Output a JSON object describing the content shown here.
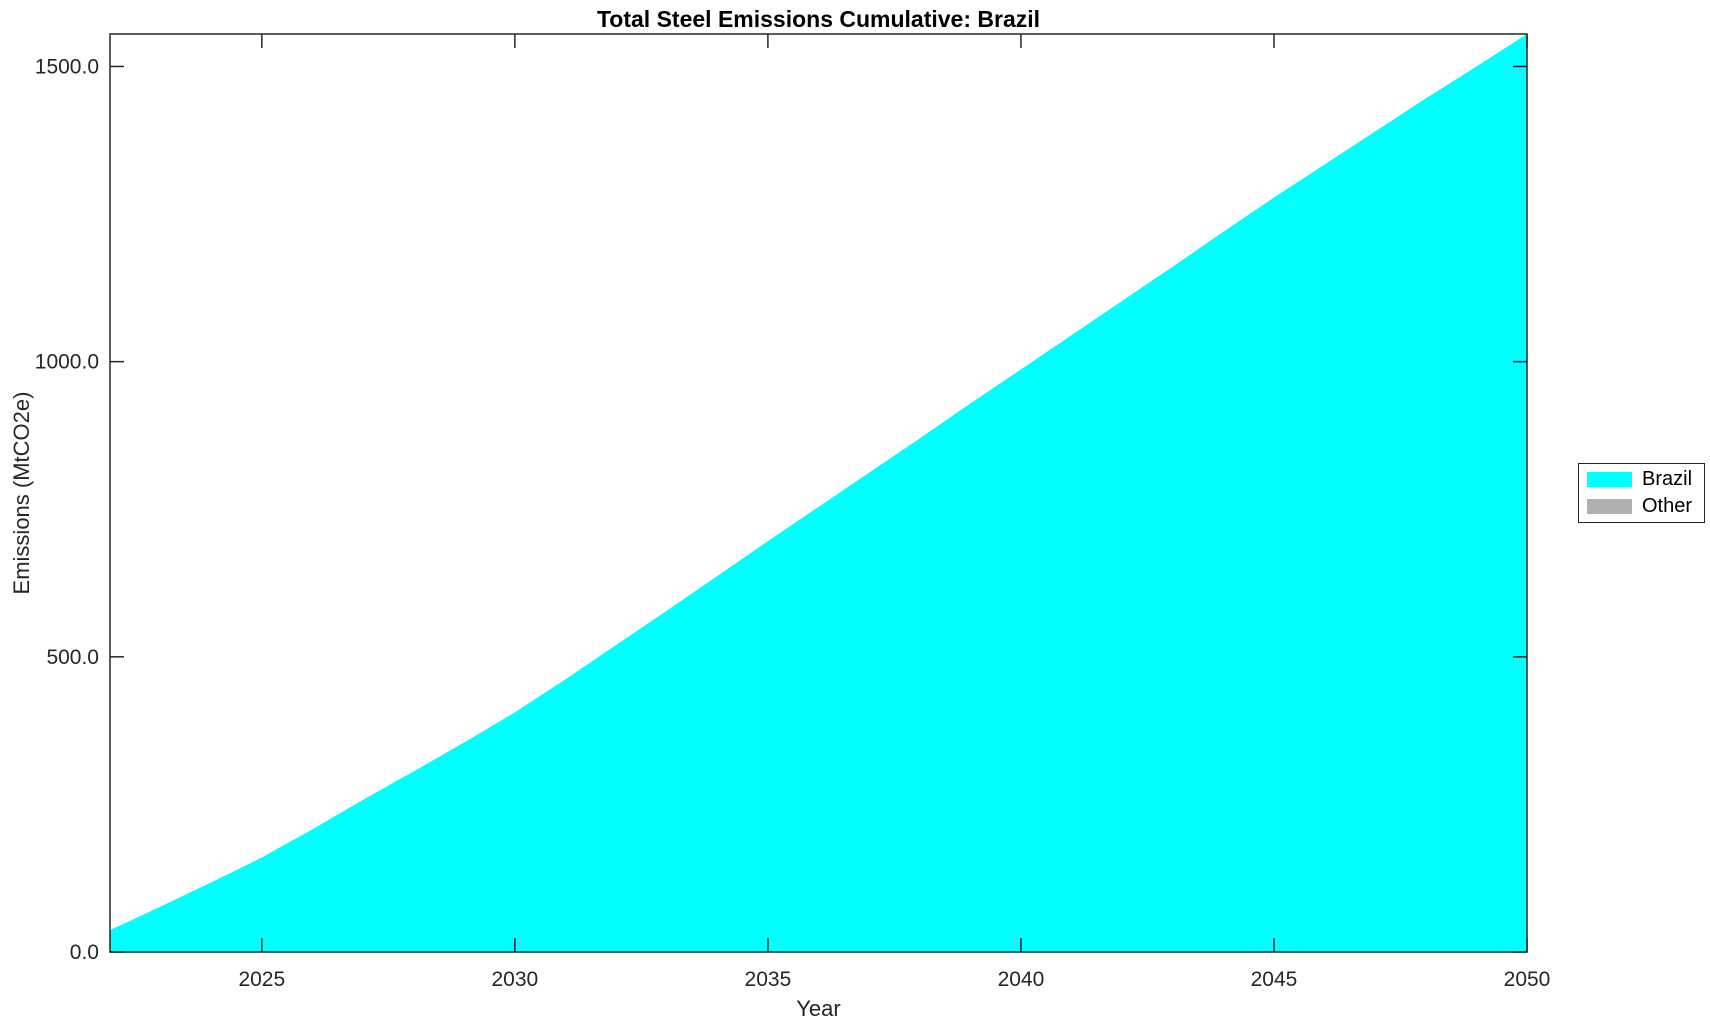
{
  "figure": {
    "background": "#ffffff",
    "axis_color": "#262626",
    "title_color": "#000000"
  },
  "chart_data": {
    "type": "area",
    "title": "Total Steel Emissions Cumulative: Brazil",
    "xlabel": "Year",
    "ylabel": "Emissions (MtCO2e)",
    "xlim": [
      2022,
      2050
    ],
    "ylim": [
      0,
      1555
    ],
    "x_ticks": [
      2025,
      2030,
      2035,
      2040,
      2045,
      2050
    ],
    "x_tick_labels": [
      "2025",
      "2030",
      "2035",
      "2040",
      "2045",
      "2050"
    ],
    "y_ticks": [
      0,
      500,
      1000,
      1500
    ],
    "y_tick_labels": [
      "0.0",
      "500.0",
      "1000.0",
      "1500.0"
    ],
    "grid": false,
    "legend_position": "right-outside",
    "x": [
      2022,
      2023,
      2024,
      2025,
      2026,
      2027,
      2028,
      2029,
      2030,
      2031,
      2032,
      2033,
      2034,
      2035,
      2036,
      2037,
      2038,
      2039,
      2040,
      2041,
      2042,
      2043,
      2044,
      2045,
      2046,
      2047,
      2048,
      2049,
      2050
    ],
    "series": [
      {
        "name": "Brazil",
        "color": "#00FFFF",
        "values": [
          37,
          77,
          118,
          160,
          208,
          258,
          306,
          355,
          406,
          462,
          520,
          578,
          637,
          696,
          754,
          812,
          870,
          929,
          987,
          1045,
          1103,
          1161,
          1220,
          1278,
          1334,
          1390,
          1446,
          1500,
          1555
        ]
      },
      {
        "name": "Other",
        "color": "#B0B0B0",
        "values": [
          0,
          0,
          0,
          0,
          0,
          0,
          0,
          0,
          0,
          0,
          0,
          0,
          0,
          0,
          0,
          0,
          0,
          0,
          0,
          0,
          0,
          0,
          0,
          0,
          0,
          0,
          0,
          0,
          0
        ]
      }
    ]
  }
}
